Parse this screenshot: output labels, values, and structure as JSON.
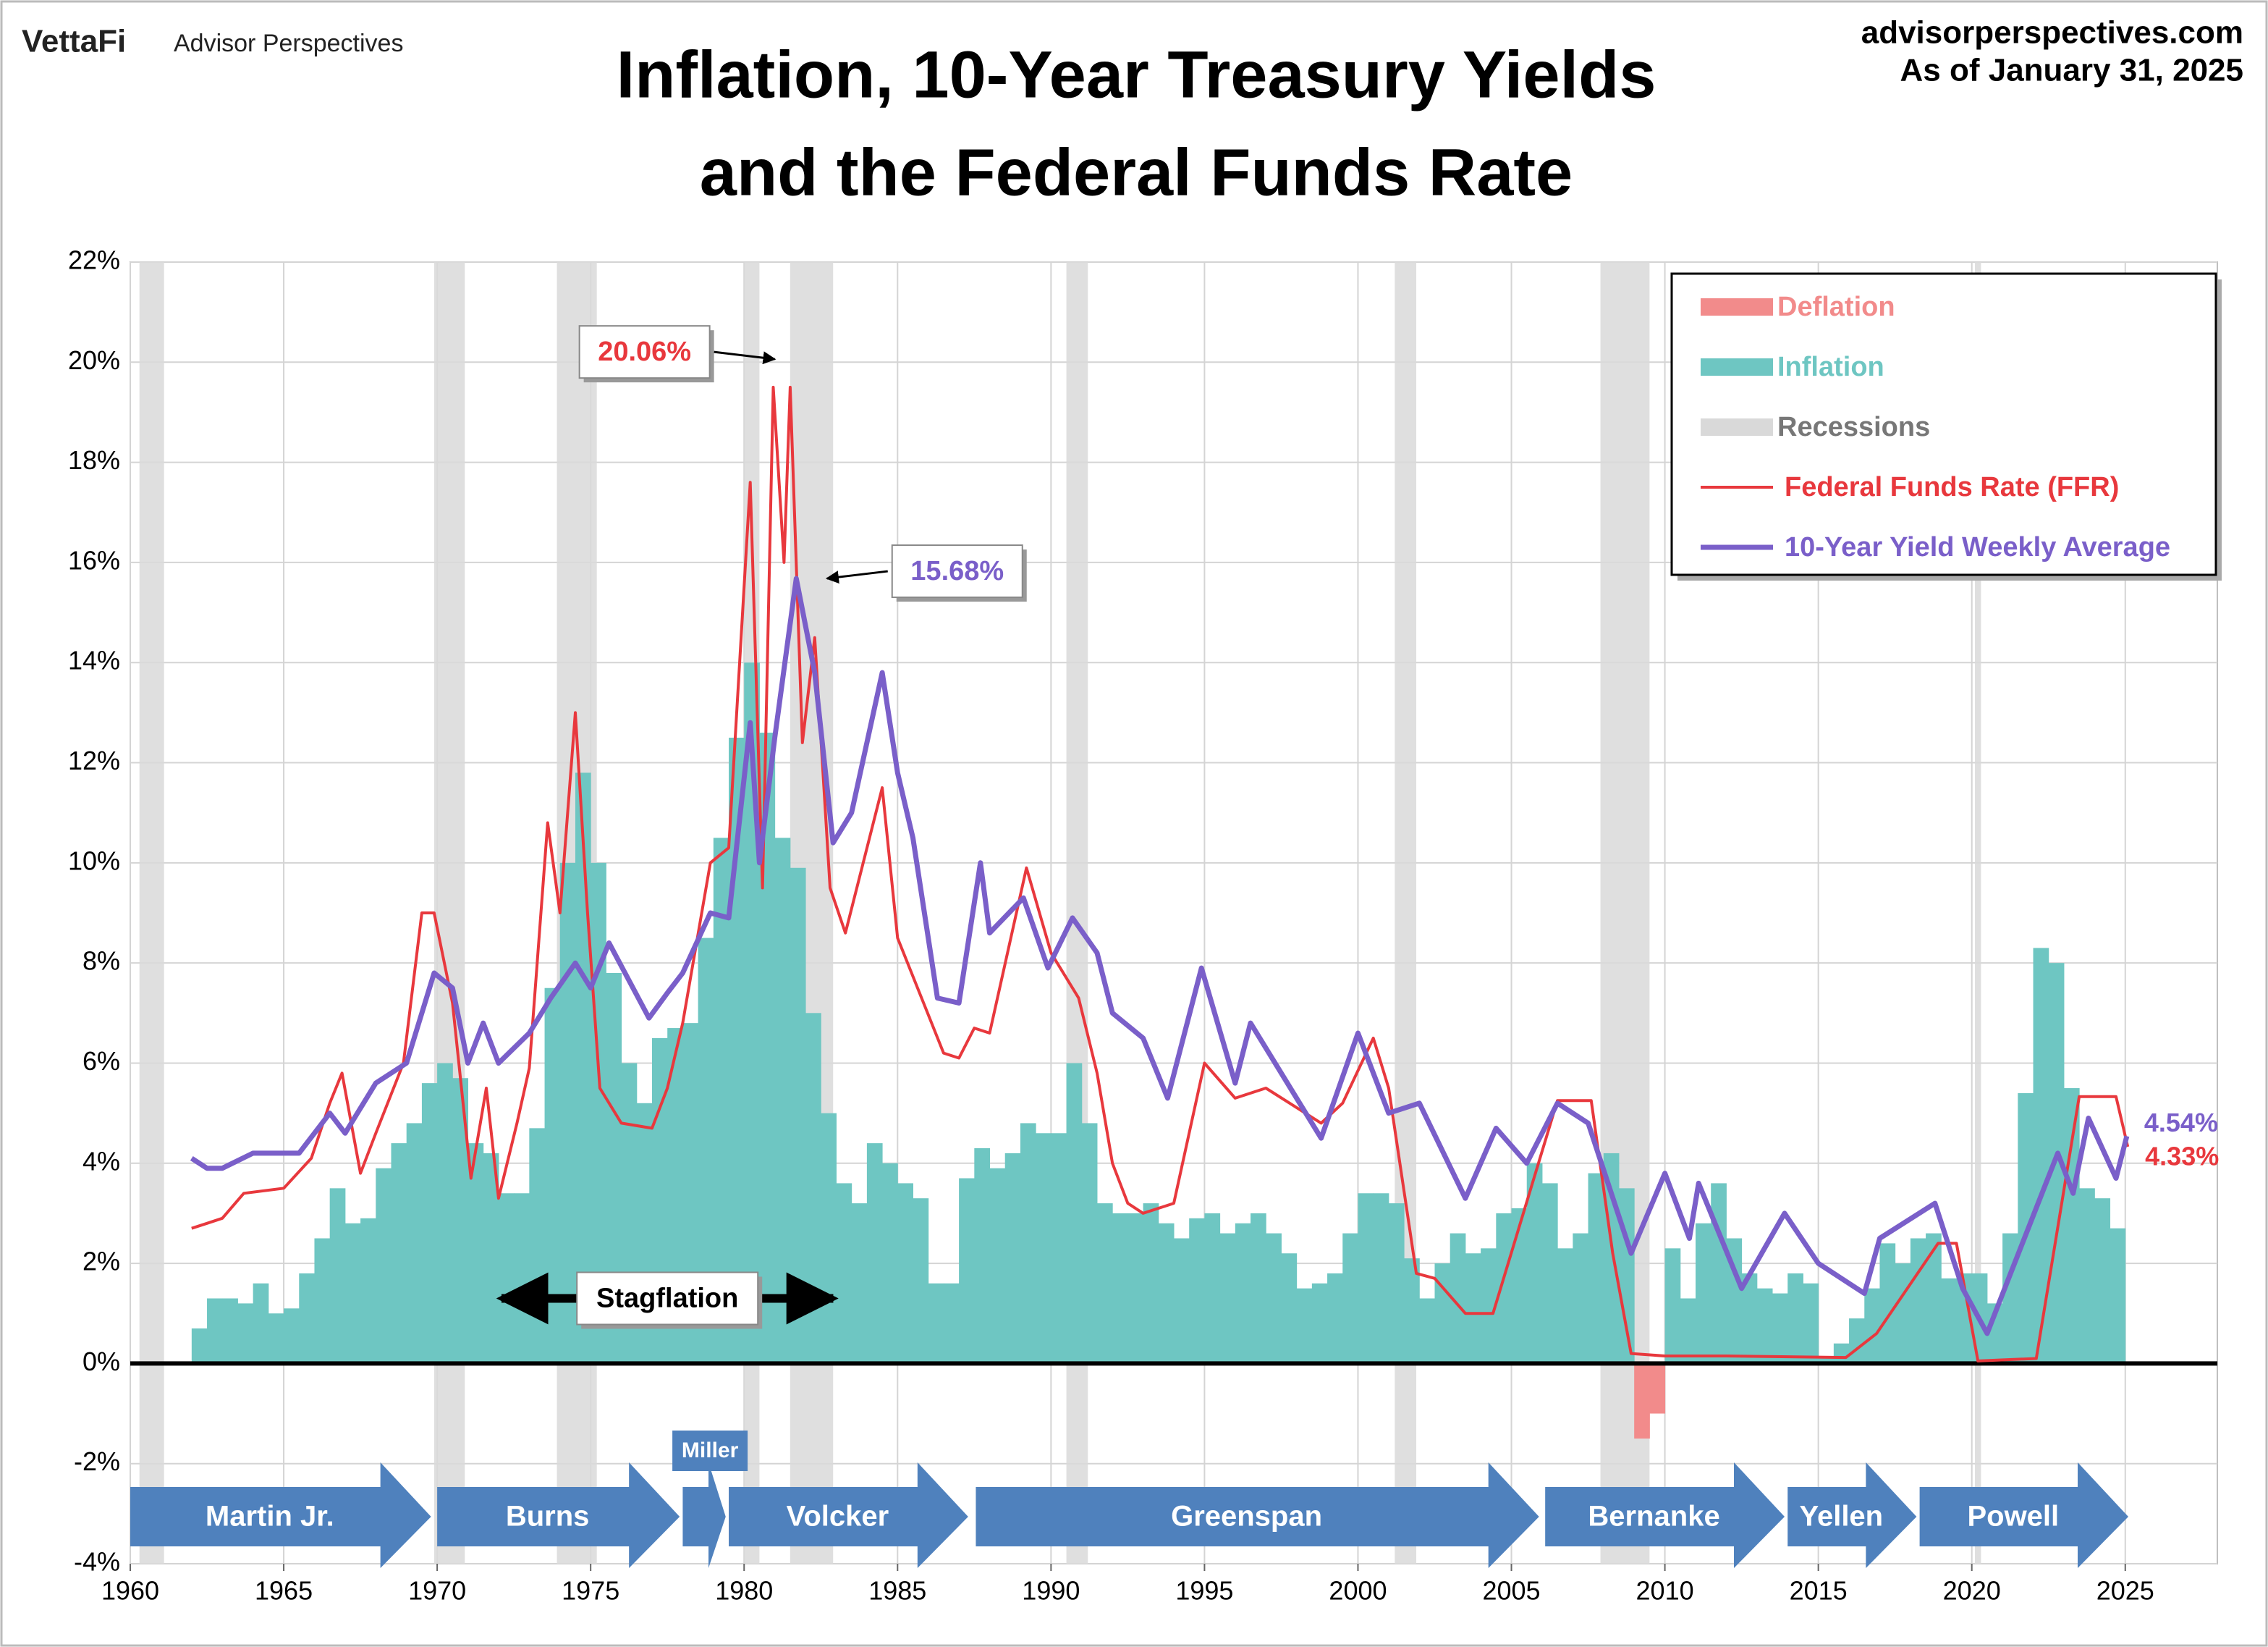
{
  "chart_data": {
    "type": "line",
    "brand": "VettaFi",
    "brand_sub": "Advisor Perspectives",
    "source": "advisorperspectives.com",
    "as_of": "As of January 31, 2025",
    "title": [
      "Inflation, 10-Year Treasury Yields",
      "and the Federal Funds Rate"
    ],
    "xlim": [
      1960,
      2028
    ],
    "xticks": [
      1960,
      1965,
      1970,
      1975,
      1980,
      1985,
      1990,
      1995,
      2000,
      2005,
      2010,
      2015,
      2020,
      2025
    ],
    "ylim": [
      -4,
      22
    ],
    "yticks": [
      {
        "value": -4,
        "label": "-4%"
      },
      {
        "value": -2,
        "label": "-2%"
      },
      {
        "value": 0,
        "label": "0%"
      },
      {
        "value": 2,
        "label": "2%"
      },
      {
        "value": 4,
        "label": "4%"
      },
      {
        "value": 6,
        "label": "6%"
      },
      {
        "value": 8,
        "label": "8%"
      },
      {
        "value": 10,
        "label": "10%"
      },
      {
        "value": 12,
        "label": "12%"
      },
      {
        "value": 14,
        "label": "14%"
      },
      {
        "value": 16,
        "label": "16%"
      },
      {
        "value": 18,
        "label": "18%"
      },
      {
        "value": 20,
        "label": "20%"
      },
      {
        "value": 22,
        "label": "22%"
      }
    ],
    "grid": true,
    "legend": "upper right",
    "series": [
      {
        "name": "Deflation",
        "style": "bar",
        "color": "#f28b8b",
        "x": [
          2009.0,
          2009.5
        ],
        "values": [
          -1.5,
          -1.0
        ]
      },
      {
        "name": "Inflation",
        "style": "bar",
        "color": "#6ec6c2",
        "x": [
          1962,
          1962.5,
          1963,
          1963.5,
          1964,
          1964.5,
          1965,
          1965.5,
          1966,
          1966.5,
          1967,
          1967.5,
          1968,
          1968.5,
          1969,
          1969.5,
          1970,
          1970.5,
          1971,
          1971.5,
          1972,
          1972.5,
          1973,
          1973.5,
          1974,
          1974.5,
          1975,
          1975.5,
          1976,
          1976.5,
          1977,
          1977.5,
          1978,
          1978.5,
          1979,
          1979.5,
          1980,
          1980.5,
          1981,
          1981.5,
          1982,
          1982.5,
          1983,
          1983.5,
          1984,
          1984.5,
          1985,
          1985.5,
          1986,
          1986.5,
          1987,
          1987.5,
          1988,
          1988.5,
          1989,
          1989.5,
          1990,
          1990.5,
          1991,
          1991.5,
          1992,
          1992.5,
          1993,
          1993.5,
          1994,
          1994.5,
          1995,
          1995.5,
          1996,
          1996.5,
          1997,
          1997.5,
          1998,
          1998.5,
          1999,
          1999.5,
          2000,
          2000.5,
          2001,
          2001.5,
          2002,
          2002.5,
          2003,
          2003.5,
          2004,
          2004.5,
          2005,
          2005.5,
          2006,
          2006.5,
          2007,
          2007.5,
          2008,
          2008.5,
          2010,
          2010.5,
          2011,
          2011.5,
          2012,
          2012.5,
          2013,
          2013.5,
          2014,
          2014.5,
          2015,
          2015.5,
          2016,
          2016.5,
          2017,
          2017.5,
          2018,
          2018.5,
          2019,
          2019.5,
          2020,
          2020.5,
          2021,
          2021.5,
          2022,
          2022.5,
          2023,
          2023.5,
          2024,
          2024.5
        ],
        "values": [
          0.7,
          1.3,
          1.3,
          1.2,
          1.6,
          1.0,
          1.1,
          1.8,
          2.5,
          3.5,
          2.8,
          2.9,
          3.9,
          4.4,
          4.8,
          5.6,
          6.0,
          5.7,
          4.4,
          4.2,
          3.4,
          3.4,
          4.7,
          7.5,
          10.0,
          11.8,
          10.0,
          7.8,
          6.0,
          5.2,
          6.5,
          6.7,
          6.8,
          8.5,
          10.5,
          12.5,
          14.0,
          12.6,
          10.5,
          9.9,
          7.0,
          5.0,
          3.6,
          3.2,
          4.4,
          4.0,
          3.6,
          3.3,
          1.6,
          1.6,
          3.7,
          4.3,
          3.9,
          4.2,
          4.8,
          4.6,
          4.6,
          6.0,
          4.8,
          3.2,
          3.0,
          3.0,
          3.2,
          2.8,
          2.5,
          2.9,
          3.0,
          2.6,
          2.8,
          3.0,
          2.6,
          2.2,
          1.5,
          1.6,
          1.8,
          2.6,
          3.4,
          3.4,
          3.2,
          2.1,
          1.3,
          2.0,
          2.6,
          2.2,
          2.3,
          3.0,
          3.1,
          4.0,
          3.6,
          2.3,
          2.6,
          3.8,
          4.2,
          3.5,
          2.3,
          1.3,
          2.8,
          3.6,
          2.5,
          1.8,
          1.5,
          1.4,
          1.8,
          1.6,
          0.1,
          0.4,
          0.9,
          1.5,
          2.4,
          2.0,
          2.5,
          2.6,
          1.7,
          1.8,
          1.8,
          1.2,
          2.6,
          5.4,
          8.3,
          8.0,
          5.5,
          3.5,
          3.3,
          2.7
        ]
      },
      {
        "name": "Recessions",
        "style": "band",
        "color": "#d9d9d9",
        "spans": [
          [
            1960.3,
            1961.1
          ],
          [
            1969.9,
            1970.9
          ],
          [
            1973.9,
            1975.2
          ],
          [
            1980.0,
            1980.5
          ],
          [
            1981.5,
            1982.9
          ],
          [
            1990.5,
            1991.2
          ],
          [
            2001.2,
            2001.9
          ],
          [
            2007.9,
            2009.5
          ],
          [
            2020.1,
            2020.3
          ]
        ]
      },
      {
        "name": "Federal Funds Rate (FFR)",
        "style": "line",
        "color": "#e8383d",
        "width": 4,
        "end_label": "4.33%",
        "x": [
          1962.0,
          1962.5,
          1963.0,
          1963.7,
          1965.0,
          1965.9,
          1966.5,
          1966.9,
          1967.5,
          1968.0,
          1968.9,
          1969.5,
          1969.9,
          1970.5,
          1971.1,
          1971.6,
          1972.0,
          1972.6,
          1973.0,
          1973.6,
          1974.0,
          1974.5,
          1974.9,
          1975.3,
          1976.0,
          1977.0,
          1977.5,
          1978.0,
          1978.9,
          1979.5,
          1980.2,
          1980.6,
          1980.95,
          1981.3,
          1981.5,
          1981.9,
          1982.3,
          1982.8,
          1983.3,
          1984.5,
          1985.0,
          1986.5,
          1987.0,
          1987.5,
          1988.0,
          1989.2,
          1990.0,
          1990.9,
          1991.5,
          1992.0,
          1992.5,
          1993.0,
          1994.0,
          1995.0,
          1996.0,
          1997.0,
          1998.8,
          1999.5,
          2000.5,
          2001.0,
          2001.9,
          2002.5,
          2003.5,
          2004.4,
          2006.5,
          2007.6,
          2008.3,
          2008.9,
          2010.0,
          2012.0,
          2015.9,
          2016.9,
          2018.9,
          2019.5,
          2020.2,
          2022.1,
          2023.5,
          2024.7,
          2025.08
        ],
        "values": [
          2.7,
          2.8,
          2.9,
          3.4,
          3.5,
          4.1,
          5.2,
          5.8,
          3.8,
          4.6,
          6.0,
          9.0,
          9.0,
          7.2,
          3.7,
          5.5,
          3.3,
          4.8,
          5.9,
          10.8,
          9.0,
          13.0,
          9.0,
          5.5,
          4.8,
          4.7,
          5.5,
          6.8,
          10.0,
          10.3,
          17.6,
          9.5,
          19.5,
          16.0,
          19.5,
          12.4,
          14.5,
          9.5,
          8.6,
          11.5,
          8.5,
          6.2,
          6.1,
          6.7,
          6.6,
          9.9,
          8.2,
          7.3,
          5.8,
          4.0,
          3.2,
          3.0,
          3.2,
          6.0,
          5.3,
          5.5,
          4.8,
          5.2,
          6.5,
          5.5,
          1.8,
          1.7,
          1.0,
          1.0,
          5.25,
          5.25,
          2.2,
          0.2,
          0.15,
          0.15,
          0.12,
          0.6,
          2.4,
          2.4,
          0.05,
          0.1,
          5.33,
          5.33,
          4.33
        ]
      },
      {
        "name": "10-Year Yield Weekly Average",
        "style": "line",
        "color": "#7a5fc9",
        "width": 7,
        "end_label": "4.54%",
        "x": [
          1962.0,
          1962.5,
          1963.0,
          1964.0,
          1965.5,
          1966.5,
          1967.0,
          1968.0,
          1969.0,
          1969.9,
          1970.5,
          1971.0,
          1971.5,
          1972.0,
          1973.0,
          1973.7,
          1974.5,
          1975.0,
          1975.6,
          1976.9,
          1977.5,
          1978.0,
          1978.9,
          1979.5,
          1980.2,
          1980.5,
          1981.0,
          1981.7,
          1982.3,
          1982.9,
          1983.5,
          1984.5,
          1985.0,
          1985.5,
          1986.3,
          1987.0,
          1987.7,
          1988.0,
          1989.1,
          1989.9,
          1990.7,
          1991.5,
          1992.0,
          1993.0,
          1993.8,
          1994.9,
          1996.0,
          1996.5,
          1998.8,
          2000.0,
          2001.0,
          2002.0,
          2003.5,
          2004.5,
          2005.5,
          2006.5,
          2007.5,
          2008.9,
          2010.0,
          2010.8,
          2011.1,
          2012.5,
          2013.9,
          2015.0,
          2016.5,
          2017.0,
          2018.8,
          2019.7,
          2020.5,
          2021.2,
          2022.8,
          2023.3,
          2023.8,
          2024.7,
          2025.05
        ],
        "values": [
          4.1,
          3.9,
          3.9,
          4.2,
          4.2,
          5.0,
          4.6,
          5.6,
          6.0,
          7.8,
          7.5,
          6.0,
          6.8,
          6.0,
          6.6,
          7.3,
          8.0,
          7.5,
          8.4,
          6.9,
          7.4,
          7.8,
          9.0,
          8.9,
          12.8,
          10.0,
          12.5,
          15.68,
          13.8,
          10.4,
          11.0,
          13.8,
          11.8,
          10.5,
          7.3,
          7.2,
          10.0,
          8.6,
          9.3,
          7.9,
          8.9,
          8.2,
          7.0,
          6.5,
          5.3,
          7.9,
          5.6,
          6.8,
          4.5,
          6.6,
          5.0,
          5.2,
          3.3,
          4.7,
          4.0,
          5.2,
          4.8,
          2.2,
          3.8,
          2.5,
          3.6,
          1.5,
          3.0,
          2.0,
          1.4,
          2.5,
          3.2,
          1.5,
          0.6,
          1.7,
          4.2,
          3.4,
          4.9,
          3.7,
          4.54
        ]
      }
    ],
    "annotations": [
      {
        "text": "20.06%",
        "x": 1981.0,
        "y": 20.06,
        "color": "#e8383d",
        "side": "left"
      },
      {
        "text": "15.68%",
        "x": 1982.7,
        "y": 15.68,
        "color": "#7a5fc9",
        "side": "right"
      }
    ],
    "span_annotation": {
      "text": "Stagflation",
      "x": [
        1972.0,
        1983.0
      ],
      "y": 1.3
    },
    "fed_chairs": [
      {
        "name": "Martin Jr.",
        "start": 1960.0,
        "end": 1969.8
      },
      {
        "name": "Burns",
        "start": 1970.0,
        "end": 1977.9
      },
      {
        "name": "Miller",
        "start": 1978.0,
        "end": 1979.4
      },
      {
        "name": "Volcker",
        "start": 1979.5,
        "end": 1987.3
      },
      {
        "name": "Greenspan",
        "start": 1987.55,
        "end": 2005.9
      },
      {
        "name": "Bernanke",
        "start": 2006.1,
        "end": 2013.9
      },
      {
        "name": "Yellen",
        "start": 2014.0,
        "end": 2018.2
      },
      {
        "name": "Powell",
        "start": 2018.3,
        "end": 2025.1
      }
    ]
  }
}
